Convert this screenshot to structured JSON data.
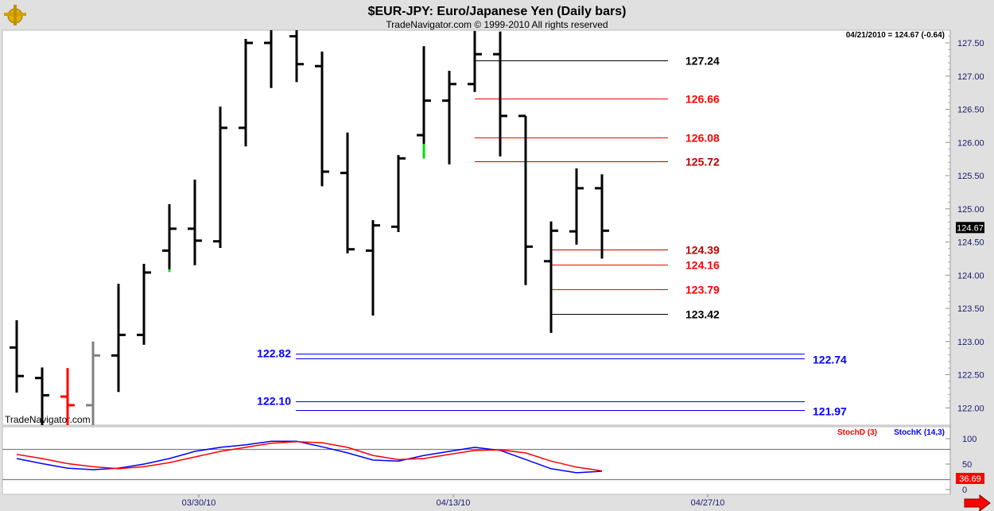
{
  "header": {
    "title": "$EUR-JPY:  Euro/Japanese Yen  (Daily bars)",
    "subtitle": "TradeNavigator.com © 1999-2010 All rights reserved",
    "quote": "04/21/2010 = 124.67 (-0.64)",
    "watermark": "TradeNavigator.com"
  },
  "colors": {
    "up_bar": "#000000",
    "highlight_red": "#ff0000",
    "highlight_gray": "#808080",
    "highlight_green": "#00e000",
    "level_red": "#ff0000",
    "level_darkred": "#c00000",
    "level_black": "#000000",
    "level_blue": "#0000ff",
    "stoch_k": "#0000ff",
    "stoch_d": "#ff0000",
    "last_price_bg": "#000000",
    "stoch_tag_bg": "#ff0000"
  },
  "chart_data": [
    {
      "type": "ohlc",
      "title": "$EUR-JPY:  Euro/Japanese Yen  (Daily bars)",
      "ylim": [
        121.75,
        127.75
      ],
      "y_ticks": [
        "127.50",
        "127.00",
        "126.50",
        "126.00",
        "125.50",
        "125.00",
        "124.50",
        "124.00",
        "123.50",
        "123.00",
        "122.50",
        "122.00"
      ],
      "x_ticks": [
        "03/30/10",
        "04/13/10",
        "04/27/10"
      ],
      "last_price": "124.67",
      "bars": [
        {
          "date": "03/19/10",
          "o": 122.91,
          "h": 123.32,
          "l": 122.23,
          "c": 122.48
        },
        {
          "date": "03/22/10",
          "o": 122.45,
          "h": 122.61,
          "l": 121.7,
          "c": 122.19
        },
        {
          "date": "03/23/10",
          "o": 122.17,
          "h": 122.6,
          "l": 121.7,
          "c": 122.04,
          "color": "red"
        },
        {
          "date": "03/24/10",
          "o": 122.04,
          "h": 123.0,
          "l": 121.7,
          "c": 122.79,
          "color": "gray"
        },
        {
          "date": "03/25/10",
          "o": 122.79,
          "h": 123.87,
          "l": 122.24,
          "c": 123.1
        },
        {
          "date": "03/26/10",
          "o": 123.1,
          "h": 124.17,
          "l": 122.95,
          "c": 124.04
        },
        {
          "date": "03/29/10",
          "o": 124.37,
          "h": 125.07,
          "l": 124.05,
          "c": 124.7,
          "green_tail": 0.04
        },
        {
          "date": "03/30/10",
          "o": 124.7,
          "h": 125.44,
          "l": 124.15,
          "c": 124.52
        },
        {
          "date": "03/31/10",
          "o": 124.51,
          "h": 126.54,
          "l": 124.41,
          "c": 126.22
        },
        {
          "date": "04/01/10",
          "o": 126.22,
          "h": 127.56,
          "l": 125.94,
          "c": 127.5
        },
        {
          "date": "04/02/10",
          "o": 127.5,
          "h": 127.8,
          "l": 126.82,
          "c": 127.75
        },
        {
          "date": "04/05/10",
          "o": 127.6,
          "h": 127.8,
          "l": 126.91,
          "c": 127.18
        },
        {
          "date": "04/06/10",
          "o": 127.15,
          "h": 127.37,
          "l": 125.34,
          "c": 125.56
        },
        {
          "date": "04/07/10",
          "o": 125.54,
          "h": 126.15,
          "l": 124.33,
          "c": 124.39
        },
        {
          "date": "04/08/10",
          "o": 124.37,
          "h": 124.83,
          "l": 123.39,
          "c": 124.75
        },
        {
          "date": "04/09/10",
          "o": 124.73,
          "h": 125.81,
          "l": 124.65,
          "c": 125.76
        },
        {
          "date": "04/12/10",
          "o": 126.11,
          "h": 127.45,
          "l": 125.76,
          "c": 126.63,
          "green_tail": 0.22
        },
        {
          "date": "04/13/10",
          "o": 126.63,
          "h": 127.08,
          "l": 125.67,
          "c": 126.88
        },
        {
          "date": "04/14/10",
          "o": 126.88,
          "h": 127.68,
          "l": 126.76,
          "c": 127.33
        },
        {
          "date": "04/15/10",
          "o": 127.33,
          "h": 127.67,
          "l": 125.79,
          "c": 126.4
        },
        {
          "date": "04/16/10",
          "o": 126.4,
          "h": 126.4,
          "l": 123.85,
          "c": 124.43
        },
        {
          "date": "04/19/10",
          "o": 124.21,
          "h": 124.81,
          "l": 123.13,
          "c": 124.67
        },
        {
          "date": "04/20/10",
          "o": 124.66,
          "h": 125.61,
          "l": 124.46,
          "c": 125.31
        },
        {
          "date": "04/21/10",
          "o": 125.31,
          "h": 125.52,
          "l": 124.25,
          "c": 124.67
        }
      ],
      "levels": [
        {
          "value": "127.24",
          "color": "black",
          "group": "upper"
        },
        {
          "value": "126.66",
          "color": "red",
          "group": "upper"
        },
        {
          "value": "126.08",
          "color": "red",
          "group": "upper"
        },
        {
          "value": "125.72",
          "color": "darkred",
          "group": "upper"
        },
        {
          "value": "124.39",
          "color": "darkred",
          "group": "lower"
        },
        {
          "value": "124.16",
          "color": "red",
          "group": "lower"
        },
        {
          "value": "123.79",
          "color": "red",
          "group": "lower"
        },
        {
          "value": "123.42",
          "color": "black",
          "group": "lower"
        }
      ],
      "blue_levels": [
        {
          "left": "122.82",
          "right": "122.74"
        },
        {
          "left": "122.10",
          "right": "121.97"
        }
      ]
    },
    {
      "type": "line",
      "ylim": [
        0,
        100
      ],
      "y_ticks": [
        "100",
        "50",
        "0"
      ],
      "reference_lines": [
        80,
        20
      ],
      "legend": [
        "StochD (3)",
        "StochK (14,3)"
      ],
      "last_value": "36.69",
      "series": [
        {
          "name": "StochK (14,3)",
          "values": [
            61,
            51,
            42,
            39,
            42,
            50,
            61,
            75,
            83,
            88,
            95,
            95,
            84,
            72,
            58,
            56,
            67,
            75,
            83,
            77,
            59,
            41,
            33,
            36
          ]
        },
        {
          "name": "StochD (3)",
          "values": [
            69,
            61,
            51,
            45,
            41,
            45,
            53,
            64,
            75,
            83,
            91,
            94,
            92,
            83,
            67,
            59,
            61,
            69,
            77,
            78,
            72,
            56,
            44,
            36.69
          ]
        }
      ]
    }
  ]
}
